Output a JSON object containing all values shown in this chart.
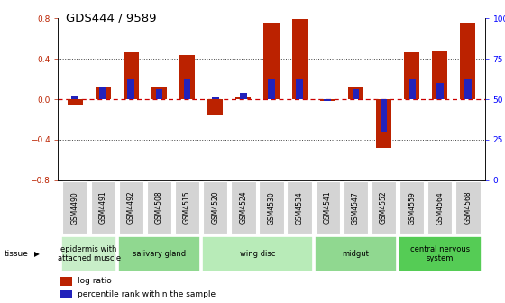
{
  "title": "GDS444 / 9589",
  "samples": [
    "GSM4490",
    "GSM4491",
    "GSM4492",
    "GSM4508",
    "GSM4515",
    "GSM4520",
    "GSM4524",
    "GSM4530",
    "GSM4534",
    "GSM4541",
    "GSM4547",
    "GSM4552",
    "GSM4559",
    "GSM4564",
    "GSM4568"
  ],
  "log_ratio": [
    -0.05,
    0.12,
    0.46,
    0.12,
    0.44,
    -0.15,
    0.02,
    0.75,
    0.79,
    -0.02,
    0.12,
    -0.48,
    0.46,
    0.47,
    0.75
  ],
  "percentile_pct": [
    52,
    58,
    62,
    56,
    62,
    51,
    54,
    62,
    62,
    49,
    56,
    30,
    62,
    60,
    62
  ],
  "ylim_left": [
    -0.8,
    0.8
  ],
  "yticks_left": [
    -0.8,
    -0.4,
    0.0,
    0.4,
    0.8
  ],
  "yticks_right": [
    0,
    25,
    50,
    75,
    100
  ],
  "tissue_groups": [
    {
      "label": "epidermis with\nattached muscle",
      "start": 0,
      "end": 2,
      "color": "#c8eec8"
    },
    {
      "label": "salivary gland",
      "start": 2,
      "end": 5,
      "color": "#90d890"
    },
    {
      "label": "wing disc",
      "start": 5,
      "end": 9,
      "color": "#b8ebb8"
    },
    {
      "label": "midgut",
      "start": 9,
      "end": 12,
      "color": "#90d890"
    },
    {
      "label": "central nervous\nsystem",
      "start": 12,
      "end": 15,
      "color": "#55cc55"
    }
  ],
  "bar_width": 0.55,
  "blue_bar_width": 0.25,
  "red_color": "#bb2200",
  "blue_color": "#2222bb",
  "zero_line_color": "#cc0000",
  "dotted_line_color": "#444444",
  "bg_color": "#ffffff",
  "title_fontsize": 9.5,
  "tick_fontsize": 6.5,
  "tissue_fontsize": 6.0,
  "legend_fontsize": 6.5,
  "xticklabel_bg": "#d4d4d4",
  "xticklabel_fontsize": 5.5
}
